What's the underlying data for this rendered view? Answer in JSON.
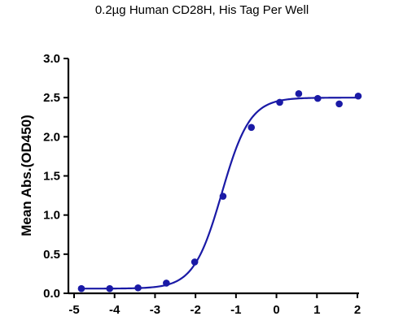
{
  "chart_data": {
    "type": "scatter",
    "subtitle": "0.2µg Human CD28H, His Tag Per Well",
    "ylabel": "Mean Abs.(OD450)",
    "xlabel": "",
    "xlim": [
      -5,
      2
    ],
    "ylim": [
      0,
      3.0
    ],
    "x_ticks": [
      -5,
      -4,
      -3,
      -2,
      -1,
      0,
      1,
      2
    ],
    "y_ticks": [
      0,
      0.5,
      1.0,
      1.5,
      2.0,
      2.5,
      3.0
    ],
    "x_tick_labels": [
      "-5",
      "-4",
      "-3",
      "-2",
      "-1",
      "0",
      "1",
      "2"
    ],
    "y_tick_labels": [
      "0.0",
      "0.5",
      "1.0",
      "1.5",
      "2.0",
      "2.5",
      "3.0"
    ],
    "grid": false,
    "series": [
      {
        "color": "#1a1aa6",
        "points": [
          {
            "x": -4.82,
            "y": 0.06
          },
          {
            "x": -4.12,
            "y": 0.06
          },
          {
            "x": -3.42,
            "y": 0.07
          },
          {
            "x": -2.72,
            "y": 0.13
          },
          {
            "x": -2.02,
            "y": 0.4
          },
          {
            "x": -1.32,
            "y": 1.24
          },
          {
            "x": -0.62,
            "y": 2.12
          },
          {
            "x": 0.08,
            "y": 2.44
          },
          {
            "x": 0.55,
            "y": 2.55
          },
          {
            "x": 1.02,
            "y": 2.49
          },
          {
            "x": 1.55,
            "y": 2.42
          },
          {
            "x": 2.02,
            "y": 2.52
          }
        ],
        "fit": {
          "model": "4PL",
          "bottom": 0.06,
          "top": 2.5,
          "log_ec50": -1.35,
          "hill": 1.25
        }
      }
    ]
  }
}
